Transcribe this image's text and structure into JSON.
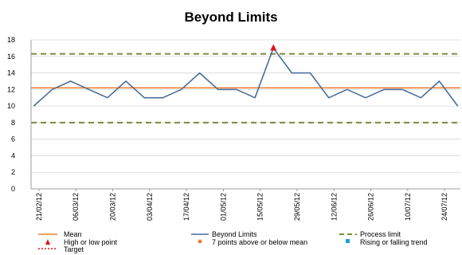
{
  "chart_data": {
    "type": "line",
    "title": "Beyond Limits",
    "ylim": [
      0,
      18
    ],
    "yticks": [
      0,
      2,
      4,
      6,
      8,
      10,
      12,
      14,
      16,
      18
    ],
    "xlim": [
      "2012-02-18",
      "2012-07-30"
    ],
    "x_tick_labels": [
      "21/02/12",
      "06/03/12",
      "20/03/12",
      "03/04/12",
      "17/04/12",
      "01/05/12",
      "15/05/12",
      "29/05/12",
      "12/06/12",
      "26/06/12",
      "10/07/12",
      "24/07/12"
    ],
    "x_ticks": [
      "2012-02-21",
      "2012-03-06",
      "2012-03-20",
      "2012-04-03",
      "2012-04-17",
      "2012-05-01",
      "2012-05-15",
      "2012-05-29",
      "2012-06-12",
      "2012-06-26",
      "2012-07-10",
      "2012-07-24"
    ],
    "grid": true,
    "series": [
      {
        "name": "Beyond Limits",
        "color": "#4a6d9c",
        "x": [
          "2012-02-19",
          "2012-02-26",
          "2012-03-04",
          "2012-03-11",
          "2012-03-18",
          "2012-03-25",
          "2012-04-01",
          "2012-04-08",
          "2012-04-15",
          "2012-04-22",
          "2012-04-29",
          "2012-05-06",
          "2012-05-13",
          "2012-05-20",
          "2012-05-27",
          "2012-06-03",
          "2012-06-10",
          "2012-06-17",
          "2012-06-24",
          "2012-07-01",
          "2012-07-08",
          "2012-07-15",
          "2012-07-22",
          "2012-07-29"
        ],
        "values": [
          10,
          12,
          13,
          12,
          11,
          13,
          11,
          11,
          12,
          14,
          12,
          12,
          11,
          17,
          14,
          14,
          11,
          12,
          11,
          12,
          12,
          11,
          13,
          10
        ]
      }
    ],
    "mean": {
      "name": "Mean",
      "value": 12.2,
      "color": "#f07c2b"
    },
    "process_limits": {
      "name": "Process limit",
      "upper": 16.3,
      "lower": 8.0,
      "color": "#7a8c3a"
    },
    "high_low_points": {
      "name": "High or low point",
      "color": "#e0141e",
      "x": [
        "2012-05-20"
      ],
      "values": [
        17
      ]
    },
    "seven_points_legend": {
      "name": "7 points above or below mean",
      "color": "#f07c2b"
    },
    "trend_legend": {
      "name": "Rising or falling trend",
      "color": "#1aa0e0"
    },
    "target_legend": {
      "name": "Target",
      "color": "#e0141e"
    },
    "legend_position": "bottom"
  }
}
